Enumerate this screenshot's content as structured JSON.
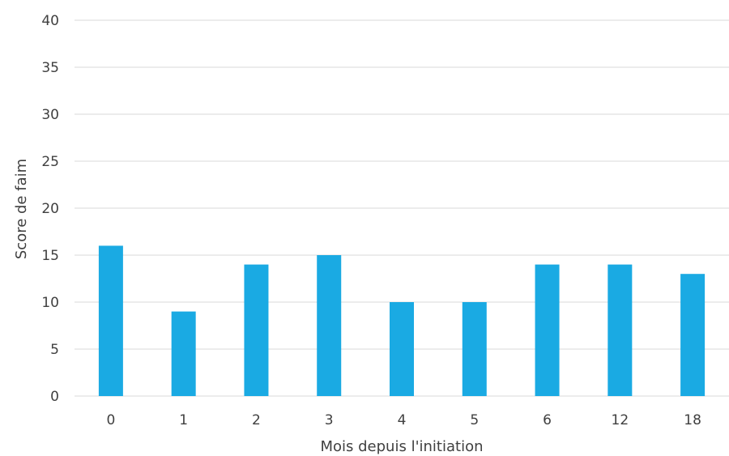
{
  "chart_data": {
    "type": "bar",
    "title": "",
    "xlabel": "Mois depuis l'initiation",
    "ylabel": "Score de faim",
    "categories": [
      "0",
      "1",
      "2",
      "3",
      "4",
      "5",
      "6",
      "12",
      "18"
    ],
    "series": [
      {
        "values": [
          16,
          9,
          14,
          15,
          10,
          10,
          14,
          14,
          13
        ]
      }
    ],
    "ylim": [
      0,
      40
    ],
    "yticks": [
      "0",
      "5",
      "10",
      "15",
      "20",
      "25",
      "30",
      "35",
      "40"
    ],
    "grid": true,
    "legend": "none",
    "colors": {
      "bar": "#1aaae3",
      "grid": "#d9d9d9",
      "text": "#404040"
    }
  }
}
